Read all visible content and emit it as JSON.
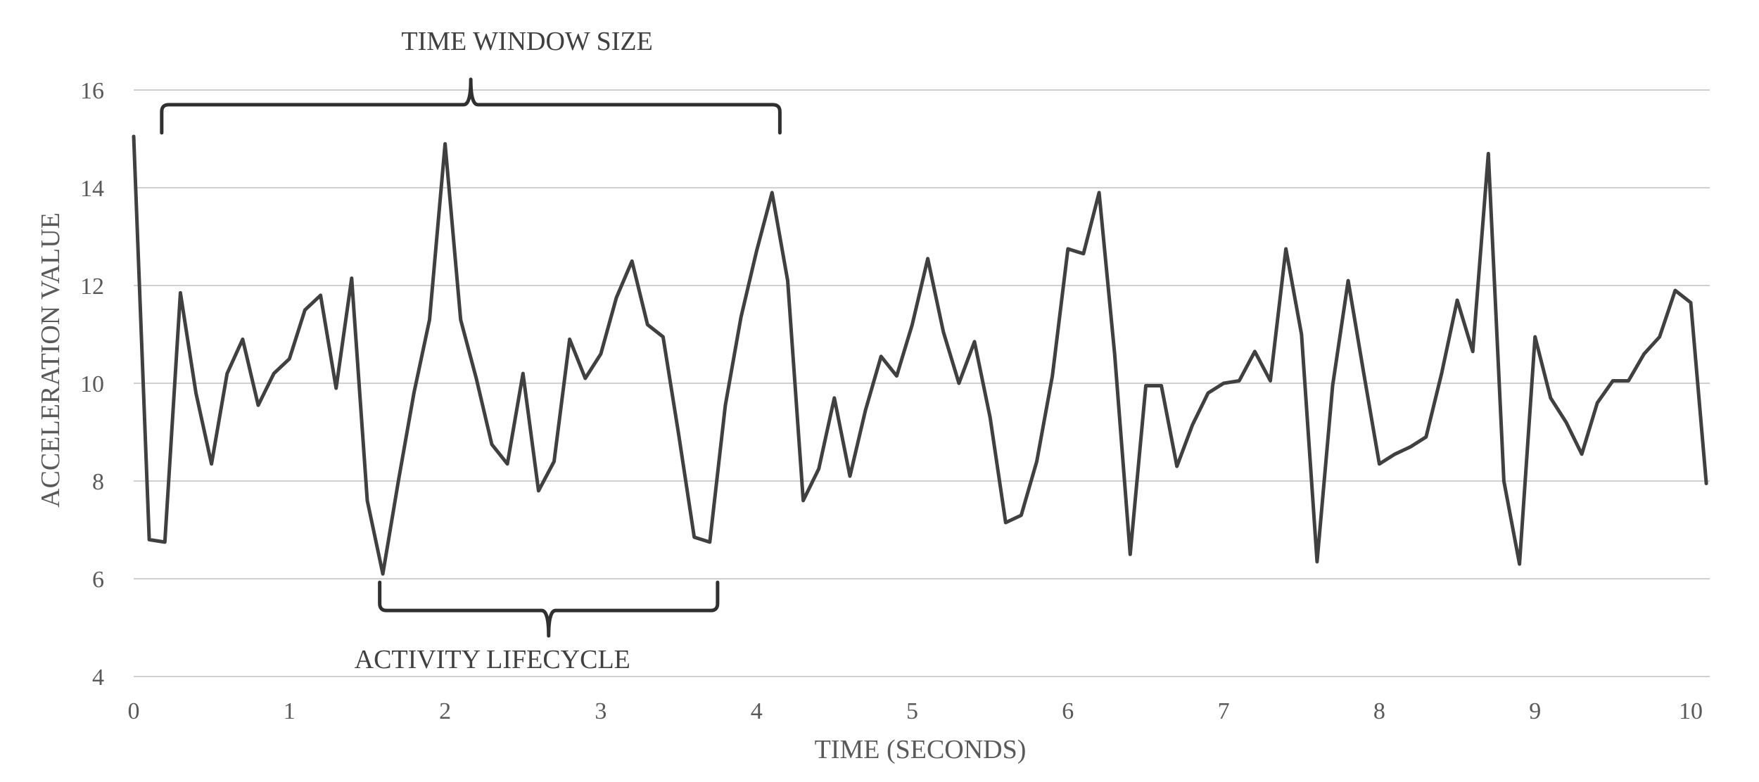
{
  "chart_data": {
    "type": "line",
    "xlabel": "TIME (SECONDS)",
    "ylabel": "ACCELERATION VALUE",
    "xlim": [
      0,
      10.1
    ],
    "ylim": [
      4,
      16
    ],
    "x_ticks": [
      0,
      1,
      2,
      3,
      4,
      5,
      6,
      7,
      8,
      9,
      10
    ],
    "y_ticks": [
      4,
      6,
      8,
      10,
      12,
      14,
      16
    ],
    "grid": "horizontal",
    "legend": "none",
    "series": [
      {
        "x": [
          0,
          0.1,
          0.2,
          0.3,
          0.4,
          0.5,
          0.6,
          0.7,
          0.8,
          0.9,
          1.0,
          1.1,
          1.2,
          1.3,
          1.4,
          1.5,
          1.6,
          1.7,
          1.8,
          1.9,
          2.0,
          2.1,
          2.2,
          2.3,
          2.4,
          2.5,
          2.6,
          2.7,
          2.8,
          2.9,
          3.0,
          3.1,
          3.2,
          3.3,
          3.4,
          3.5,
          3.6,
          3.7,
          3.8,
          3.9,
          4.0,
          4.1,
          4.2,
          4.3,
          4.4,
          4.5,
          4.6,
          4.7,
          4.8,
          4.9,
          5.0,
          5.1,
          5.2,
          5.3,
          5.4,
          5.5,
          5.6,
          5.7,
          5.8,
          5.9,
          6.0,
          6.1,
          6.2,
          6.3,
          6.4,
          6.5,
          6.6,
          6.7,
          6.8,
          6.9,
          7.0,
          7.1,
          7.2,
          7.3,
          7.4,
          7.5,
          7.6,
          7.7,
          7.8,
          7.9,
          8.0,
          8.1,
          8.2,
          8.3,
          8.4,
          8.5,
          8.6,
          8.7,
          8.8,
          8.9,
          9.0,
          9.1,
          9.2,
          9.3,
          9.4,
          9.5,
          9.6,
          9.7,
          9.8,
          9.9,
          10.0,
          10.1
        ],
        "values": [
          15.05,
          6.8,
          6.75,
          11.85,
          9.8,
          8.35,
          10.2,
          10.9,
          9.55,
          10.2,
          10.5,
          11.5,
          11.8,
          9.9,
          12.15,
          7.6,
          6.1,
          8.0,
          9.8,
          11.3,
          14.9,
          11.3,
          10.1,
          8.75,
          8.35,
          10.2,
          7.8,
          8.4,
          10.9,
          10.1,
          10.6,
          11.75,
          12.5,
          11.2,
          10.95,
          8.95,
          6.85,
          6.75,
          9.55,
          11.35,
          12.7,
          13.9,
          12.1,
          7.6,
          8.25,
          9.7,
          8.1,
          9.45,
          10.55,
          10.15,
          11.2,
          12.55,
          11.05,
          10.0,
          10.85,
          9.3,
          7.15,
          7.3,
          8.4,
          10.15,
          12.75,
          12.65,
          13.9,
          10.6,
          6.5,
          9.95,
          9.95,
          8.3,
          9.15,
          9.8,
          10.0,
          10.05,
          10.65,
          10.05,
          12.75,
          11.0,
          6.35,
          9.95,
          12.1,
          10.2,
          8.35,
          8.55,
          8.7,
          8.9,
          10.2,
          11.7,
          10.65,
          14.7,
          8.0,
          6.3,
          10.95,
          9.7,
          9.2,
          8.55,
          9.6,
          10.05,
          10.05,
          10.6,
          10.95,
          11.9,
          11.65,
          7.95
        ]
      }
    ],
    "annotations": [
      {
        "label": "TIME WINDOW SIZE",
        "span": [
          0.18,
          4.15
        ],
        "y": 15.7,
        "position": "above"
      },
      {
        "label": "ACTIVITY LIFECYCLE",
        "span": [
          1.58,
          3.75
        ],
        "y": 5.35,
        "position": "below"
      }
    ]
  }
}
